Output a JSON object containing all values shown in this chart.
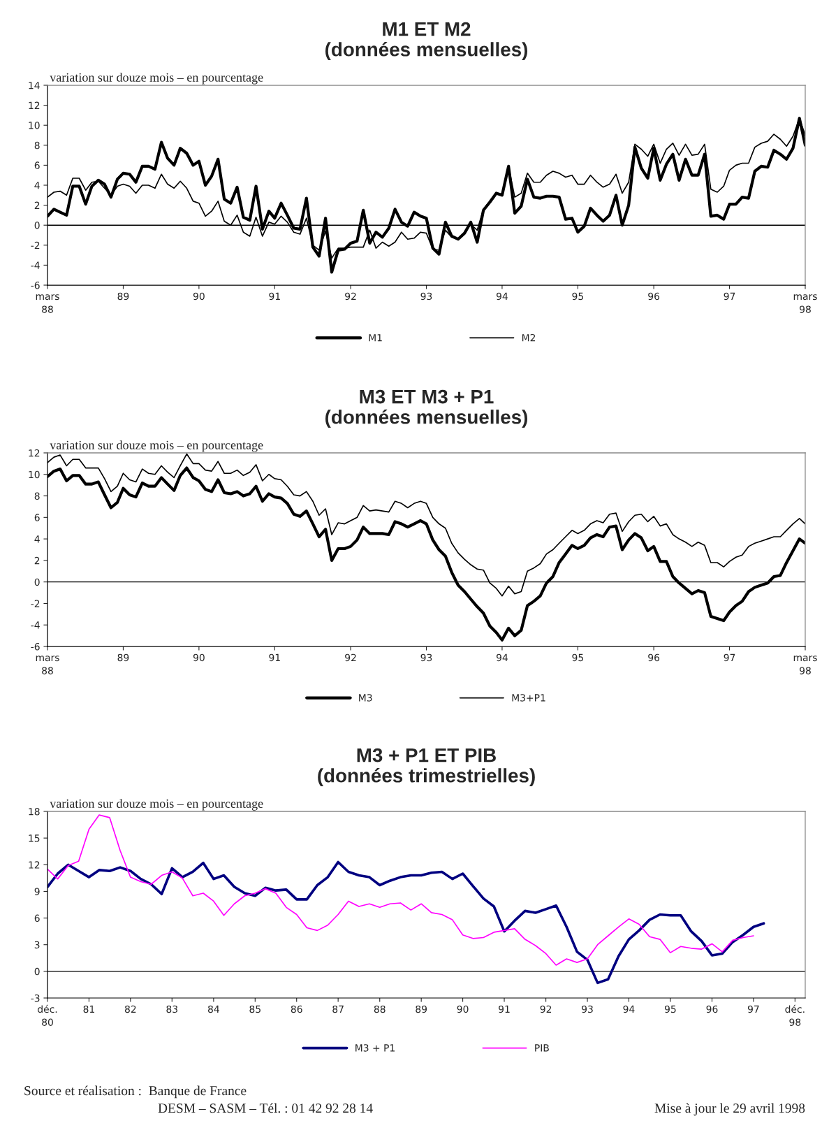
{
  "chart_data": [
    {
      "type": "line",
      "title": "M1 ET M2\n(données mensuelles)",
      "ylabel": "variation sur douze mois – en pourcentage",
      "x": [
        "1988-03",
        "1988-04",
        "1988-05",
        "1988-06",
        "1988-07",
        "1988-08",
        "1988-09",
        "1988-10",
        "1988-11",
        "1988-12",
        "1989-01",
        "1989-02",
        "1989-03",
        "1989-04",
        "1989-05",
        "1989-06",
        "1989-07",
        "1989-08",
        "1989-09",
        "1989-10",
        "1989-11",
        "1989-12",
        "1990-01",
        "1990-02",
        "1990-03",
        "1990-04",
        "1990-05",
        "1990-06",
        "1990-07",
        "1990-08",
        "1990-09",
        "1990-10",
        "1990-11",
        "1990-12",
        "1991-01",
        "1991-02",
        "1991-03",
        "1991-04",
        "1991-05",
        "1991-06",
        "1991-07",
        "1991-08",
        "1991-09",
        "1991-10",
        "1991-11",
        "1991-12",
        "1992-01",
        "1992-02",
        "1992-03",
        "1992-04",
        "1992-05",
        "1992-06",
        "1992-07",
        "1992-08",
        "1992-09",
        "1992-10",
        "1992-11",
        "1992-12",
        "1993-01",
        "1993-02",
        "1993-03",
        "1993-04",
        "1993-05",
        "1993-06",
        "1993-07",
        "1993-08",
        "1993-09",
        "1993-10",
        "1993-11",
        "1993-12",
        "1994-01",
        "1994-02",
        "1994-03",
        "1994-04",
        "1994-05",
        "1994-06",
        "1994-07",
        "1994-08",
        "1994-09",
        "1994-10",
        "1994-11",
        "1994-12",
        "1995-01",
        "1995-02",
        "1995-03",
        "1995-04",
        "1995-05",
        "1995-06",
        "1995-07",
        "1995-08",
        "1995-09",
        "1995-10",
        "1995-11",
        "1995-12",
        "1996-01",
        "1996-02",
        "1996-03",
        "1996-04",
        "1996-05",
        "1996-06",
        "1996-07",
        "1996-08",
        "1996-09",
        "1996-10",
        "1996-11",
        "1996-12",
        "1997-01",
        "1997-02",
        "1997-03",
        "1997-04",
        "1997-05",
        "1997-06",
        "1997-07",
        "1997-08",
        "1997-09",
        "1997-10",
        "1997-11",
        "1997-12",
        "1998-01",
        "1998-02",
        "1998-03"
      ],
      "series": [
        {
          "name": "M1",
          "color": "#000000",
          "values": [
            0.9,
            1.6,
            1.3,
            1.0,
            3.9,
            3.9,
            2.1,
            3.9,
            4.5,
            4.1,
            2.8,
            4.6,
            5.2,
            5.1,
            4.3,
            5.9,
            5.9,
            5.6,
            8.3,
            6.7,
            6.0,
            7.7,
            7.2,
            6.0,
            6.4,
            4.0,
            4.9,
            6.6,
            2.6,
            2.2,
            3.8,
            0.8,
            0.5,
            3.9,
            -0.4,
            1.4,
            0.7,
            2.2,
            1.0,
            -0.3,
            -0.4,
            2.7,
            -2.2,
            -3.1,
            0.7,
            -4.7,
            -2.5,
            -2.4,
            -1.8,
            -1.6,
            1.5,
            -1.8,
            -0.7,
            -1.2,
            -0.3,
            1.6,
            0.3,
            -0.1,
            1.3,
            0.9,
            0.7,
            -2.3,
            -2.9,
            0.3,
            -1.1,
            -1.4,
            -0.8,
            0.3,
            -1.7,
            1.5,
            2.3,
            3.2,
            3.0,
            5.9,
            1.2,
            1.9,
            4.6,
            2.8,
            2.7,
            2.9,
            2.9,
            2.8,
            0.6,
            0.7,
            -0.7,
            -0.1,
            1.7,
            1.0,
            0.4,
            1.0,
            3.0,
            0.0,
            2.0,
            7.8,
            5.7,
            4.7,
            7.7,
            4.5,
            6.1,
            7.1,
            4.5,
            6.6,
            5.0,
            5.0,
            7.1,
            0.9,
            1.0,
            0.6,
            2.1,
            2.1,
            2.8,
            2.7,
            5.4,
            5.9,
            5.8,
            7.5,
            7.1,
            6.6,
            7.7,
            10.7,
            8.0
          ]
        },
        {
          "name": "M2",
          "color": "#000000",
          "values": [
            2.8,
            3.3,
            3.4,
            3.0,
            4.7,
            4.7,
            3.5,
            4.3,
            4.4,
            3.7,
            3.0,
            3.9,
            4.1,
            3.9,
            3.2,
            4.0,
            4.0,
            3.7,
            5.1,
            4.1,
            3.7,
            4.4,
            3.7,
            2.4,
            2.2,
            0.9,
            1.4,
            2.4,
            0.4,
            0.0,
            1.0,
            -0.7,
            -1.1,
            0.8,
            -1.1,
            0.3,
            0.1,
            0.9,
            0.3,
            -0.7,
            -0.9,
            0.7,
            -2.0,
            -2.5,
            -0.6,
            -3.3,
            -2.3,
            -2.3,
            -2.2,
            -2.2,
            -2.2,
            -0.5,
            -2.3,
            -1.7,
            -2.1,
            -1.7,
            -0.7,
            -1.4,
            -1.3,
            -0.7,
            -0.8,
            -2.4,
            -2.5,
            -0.5,
            -1.2,
            -1.4,
            -0.8,
            0.1,
            -0.5,
            1.6,
            2.4,
            3.2,
            3.0,
            5.9,
            2.8,
            3.2,
            5.2,
            4.3,
            4.3,
            5.0,
            5.4,
            5.2,
            4.8,
            5.0,
            4.1,
            4.1,
            5.0,
            4.3,
            3.8,
            4.1,
            5.1,
            3.2,
            4.3,
            8.1,
            7.6,
            6.9,
            8.1,
            6.2,
            7.6,
            8.2,
            7.0,
            8.1,
            7.0,
            7.1,
            8.1,
            3.6,
            3.3,
            3.9,
            5.5,
            6.0,
            6.2,
            6.2,
            7.8,
            8.2,
            8.4,
            9.1,
            8.6,
            7.9,
            8.9,
            10.7,
            9.0
          ]
        }
      ],
      "xlim": [
        "1988-03",
        "1998-03"
      ],
      "xticks": [
        {
          "value": "1988-03",
          "label": "mars\n88"
        },
        {
          "value": "1989-03",
          "label": "89"
        },
        {
          "value": "1990-03",
          "label": "90"
        },
        {
          "value": "1991-03",
          "label": "91"
        },
        {
          "value": "1992-03",
          "label": "92"
        },
        {
          "value": "1993-03",
          "label": "93"
        },
        {
          "value": "1994-03",
          "label": "94"
        },
        {
          "value": "1995-03",
          "label": "95"
        },
        {
          "value": "1996-03",
          "label": "96"
        },
        {
          "value": "1997-03",
          "label": "97"
        },
        {
          "value": "1998-03",
          "label": "mars\n98"
        }
      ],
      "ylim": [
        -6,
        14
      ],
      "yticks": [
        -6,
        -4,
        -2,
        0,
        2,
        4,
        6,
        8,
        10,
        12,
        14
      ],
      "ref_lines": [
        {
          "axis": "y",
          "value": 0,
          "color": "#000000"
        }
      ],
      "legend": "bottom",
      "grid": false
    },
    {
      "type": "line",
      "title": "M3 ET M3 + P1\n(données mensuelles)",
      "ylabel": "variation sur douze mois – en pourcentage",
      "x": [
        "1988-03",
        "1988-04",
        "1988-05",
        "1988-06",
        "1988-07",
        "1988-08",
        "1988-09",
        "1988-10",
        "1988-11",
        "1988-12",
        "1989-01",
        "1989-02",
        "1989-03",
        "1989-04",
        "1989-05",
        "1989-06",
        "1989-07",
        "1989-08",
        "1989-09",
        "1989-10",
        "1989-11",
        "1989-12",
        "1990-01",
        "1990-02",
        "1990-03",
        "1990-04",
        "1990-05",
        "1990-06",
        "1990-07",
        "1990-08",
        "1990-09",
        "1990-10",
        "1990-11",
        "1990-12",
        "1991-01",
        "1991-02",
        "1991-03",
        "1991-04",
        "1991-05",
        "1991-06",
        "1991-07",
        "1991-08",
        "1991-09",
        "1991-10",
        "1991-11",
        "1991-12",
        "1992-01",
        "1992-02",
        "1992-03",
        "1992-04",
        "1992-05",
        "1992-06",
        "1992-07",
        "1992-08",
        "1992-09",
        "1992-10",
        "1992-11",
        "1992-12",
        "1993-01",
        "1993-02",
        "1993-03",
        "1993-04",
        "1993-05",
        "1993-06",
        "1993-07",
        "1993-08",
        "1993-09",
        "1993-10",
        "1993-11",
        "1993-12",
        "1994-01",
        "1994-02",
        "1994-03",
        "1994-04",
        "1994-05",
        "1994-06",
        "1994-07",
        "1994-08",
        "1994-09",
        "1994-10",
        "1994-11",
        "1994-12",
        "1995-01",
        "1995-02",
        "1995-03",
        "1995-04",
        "1995-05",
        "1995-06",
        "1995-07",
        "1995-08",
        "1995-09",
        "1995-10",
        "1995-11",
        "1995-12",
        "1996-01",
        "1996-02",
        "1996-03",
        "1996-04",
        "1996-05",
        "1996-06",
        "1996-07",
        "1996-08",
        "1996-09",
        "1996-10",
        "1996-11",
        "1996-12",
        "1997-01",
        "1997-02",
        "1997-03",
        "1997-04",
        "1997-05",
        "1997-06",
        "1997-07",
        "1997-08",
        "1997-09",
        "1997-10",
        "1997-11",
        "1997-12",
        "1998-01",
        "1998-02",
        "1998-03"
      ],
      "series": [
        {
          "name": "M3",
          "color": "#000000",
          "values": [
            9.8,
            10.3,
            10.5,
            9.4,
            9.9,
            9.9,
            9.1,
            9.1,
            9.3,
            8.1,
            6.9,
            7.4,
            8.7,
            8.1,
            7.9,
            9.2,
            8.9,
            8.9,
            9.7,
            9.1,
            8.5,
            9.9,
            10.6,
            9.7,
            9.4,
            8.6,
            8.4,
            9.5,
            8.3,
            8.2,
            8.4,
            8.0,
            8.2,
            8.9,
            7.5,
            8.2,
            7.9,
            7.8,
            7.3,
            6.3,
            6.1,
            6.6,
            5.4,
            4.2,
            4.9,
            2.0,
            3.1,
            3.1,
            3.3,
            3.9,
            5.1,
            4.5,
            4.5,
            4.5,
            4.4,
            5.6,
            5.4,
            5.1,
            5.4,
            5.7,
            5.4,
            3.9,
            3.0,
            2.4,
            0.9,
            -0.3,
            -0.9,
            -1.6,
            -2.3,
            -2.9,
            -4.1,
            -4.7,
            -5.4,
            -4.3,
            -5.0,
            -4.5,
            -2.2,
            -1.8,
            -1.3,
            -0.1,
            0.5,
            1.8,
            2.6,
            3.4,
            3.1,
            3.4,
            4.1,
            4.4,
            4.2,
            5.1,
            5.2,
            3.0,
            3.9,
            4.5,
            4.1,
            2.9,
            3.3,
            1.9,
            1.9,
            0.5,
            -0.1,
            -0.6,
            -1.1,
            -0.8,
            -1.0,
            -3.2,
            -3.4,
            -3.6,
            -2.8,
            -2.2,
            -1.8,
            -0.9,
            -0.5,
            -0.3,
            -0.1,
            0.5,
            0.6,
            1.8,
            2.9,
            4.0,
            3.6
          ]
        },
        {
          "name": "M3+P1",
          "color": "#000000",
          "values": [
            11.1,
            11.6,
            11.8,
            10.8,
            11.4,
            11.4,
            10.6,
            10.6,
            10.6,
            9.6,
            8.4,
            8.9,
            10.1,
            9.5,
            9.3,
            10.5,
            10.1,
            10.0,
            10.8,
            10.2,
            9.7,
            10.8,
            11.9,
            11.0,
            11.0,
            10.4,
            10.3,
            11.2,
            10.1,
            10.1,
            10.4,
            9.9,
            10.2,
            10.9,
            9.4,
            10.0,
            9.6,
            9.5,
            8.9,
            8.1,
            8.0,
            8.4,
            7.5,
            6.2,
            6.8,
            4.4,
            5.5,
            5.4,
            5.7,
            6.0,
            7.1,
            6.6,
            6.7,
            6.6,
            6.5,
            7.5,
            7.3,
            6.9,
            7.3,
            7.5,
            7.3,
            6.0,
            5.4,
            5.0,
            3.6,
            2.7,
            2.1,
            1.6,
            1.2,
            1.1,
            -0.1,
            -0.6,
            -1.3,
            -0.4,
            -1.1,
            -0.9,
            1.0,
            1.3,
            1.7,
            2.6,
            3.0,
            3.6,
            4.2,
            4.8,
            4.5,
            4.8,
            5.4,
            5.7,
            5.5,
            6.3,
            6.4,
            4.7,
            5.6,
            6.2,
            6.3,
            5.6,
            6.1,
            5.2,
            5.4,
            4.4,
            4.0,
            3.7,
            3.3,
            3.7,
            3.4,
            1.8,
            1.8,
            1.4,
            1.9,
            2.3,
            2.5,
            3.3,
            3.6,
            3.8,
            4.0,
            4.2,
            4.2,
            4.8,
            5.4,
            5.9,
            5.4
          ]
        }
      ],
      "xlim": [
        "1988-03",
        "1998-03"
      ],
      "xticks": [
        {
          "value": "1988-03",
          "label": "mars\n88"
        },
        {
          "value": "1989-03",
          "label": "89"
        },
        {
          "value": "1990-03",
          "label": "90"
        },
        {
          "value": "1991-03",
          "label": "91"
        },
        {
          "value": "1992-03",
          "label": "92"
        },
        {
          "value": "1993-03",
          "label": "93"
        },
        {
          "value": "1994-03",
          "label": "94"
        },
        {
          "value": "1995-03",
          "label": "95"
        },
        {
          "value": "1996-03",
          "label": "96"
        },
        {
          "value": "1997-03",
          "label": "97"
        },
        {
          "value": "1998-03",
          "label": "mars\n98"
        }
      ],
      "ylim": [
        -6,
        12
      ],
      "yticks": [
        -6,
        -4,
        -2,
        0,
        2,
        4,
        6,
        8,
        10,
        12
      ],
      "ref_lines": [
        {
          "axis": "y",
          "value": 0,
          "color": "#000000"
        }
      ],
      "legend": "bottom",
      "grid": false
    },
    {
      "type": "line",
      "title": "M3 + P1 ET PIB\n(données trimestrielles)",
      "ylabel": "variation sur douze mois – en pourcentage",
      "x": [
        "1980-12",
        "1981-03",
        "1981-06",
        "1981-09",
        "1981-12",
        "1982-03",
        "1982-06",
        "1982-09",
        "1982-12",
        "1983-03",
        "1983-06",
        "1983-09",
        "1983-12",
        "1984-03",
        "1984-06",
        "1984-09",
        "1984-12",
        "1985-03",
        "1985-06",
        "1985-09",
        "1985-12",
        "1986-03",
        "1986-06",
        "1986-09",
        "1986-12",
        "1987-03",
        "1987-06",
        "1987-09",
        "1987-12",
        "1988-03",
        "1988-06",
        "1988-09",
        "1988-12",
        "1989-03",
        "1989-06",
        "1989-09",
        "1989-12",
        "1990-03",
        "1990-06",
        "1990-09",
        "1990-12",
        "1991-03",
        "1991-06",
        "1991-09",
        "1991-12",
        "1992-03",
        "1992-06",
        "1992-09",
        "1992-12",
        "1993-03",
        "1993-06",
        "1993-09",
        "1993-12",
        "1994-03",
        "1994-06",
        "1994-09",
        "1994-12",
        "1995-03",
        "1995-06",
        "1995-09",
        "1995-12",
        "1996-03",
        "1996-06",
        "1996-09",
        "1996-12",
        "1997-03",
        "1997-06",
        "1997-09",
        "1997-12",
        "1998-03"
      ],
      "series": [
        {
          "name": "M3 + P1",
          "color": "#000080",
          "values": [
            9.5,
            11.0,
            12.0,
            11.3,
            10.6,
            11.4,
            11.3,
            11.7,
            11.3,
            10.4,
            9.8,
            8.7,
            11.6,
            10.6,
            11.2,
            12.2,
            10.4,
            10.8,
            9.5,
            8.8,
            8.5,
            9.4,
            9.1,
            9.2,
            8.1,
            8.1,
            9.7,
            10.6,
            12.3,
            11.2,
            10.8,
            10.6,
            9.7,
            10.2,
            10.6,
            10.8,
            10.8,
            11.1,
            11.2,
            10.4,
            11.0,
            9.6,
            8.2,
            7.3,
            4.5,
            5.7,
            6.8,
            6.6,
            7.0,
            7.4,
            5.0,
            2.2,
            1.3,
            -1.3,
            -0.9,
            1.7,
            3.6,
            4.6,
            5.8,
            6.4,
            6.3,
            6.3,
            4.5,
            3.4,
            1.8,
            2.0,
            3.3,
            4.1,
            5.0,
            5.4
          ]
        },
        {
          "name": "PIB",
          "color": "#ff00ff",
          "values": [
            11.5,
            10.4,
            11.9,
            12.4,
            16.0,
            17.6,
            17.3,
            13.6,
            10.6,
            10.1,
            9.8,
            10.8,
            11.2,
            10.5,
            8.5,
            8.8,
            7.9,
            6.3,
            7.6,
            8.5,
            8.8,
            9.3,
            8.8,
            7.2,
            6.4,
            4.9,
            4.6,
            5.2,
            6.4,
            7.9,
            7.3,
            7.6,
            7.2,
            7.6,
            7.7,
            6.9,
            7.6,
            6.6,
            6.4,
            5.8,
            4.1,
            3.7,
            3.8,
            4.4,
            4.6,
            4.8,
            3.6,
            2.9,
            2.0,
            0.7,
            1.4,
            1.0,
            1.4,
            3.0,
            4.0,
            5.0,
            5.9,
            5.3,
            3.9,
            3.6,
            2.1,
            2.8,
            2.6,
            2.5,
            3.1,
            2.2,
            3.5,
            3.8,
            4.0,
            null
          ]
        }
      ],
      "xlim": [
        "1980-12",
        "1999-03"
      ],
      "xticks": [
        {
          "value": "1980-12",
          "label": "déc.\n80"
        },
        {
          "value": "1981-12",
          "label": "81"
        },
        {
          "value": "1982-12",
          "label": "82"
        },
        {
          "value": "1983-12",
          "label": "83"
        },
        {
          "value": "1984-12",
          "label": "84"
        },
        {
          "value": "1985-12",
          "label": "85"
        },
        {
          "value": "1986-12",
          "label": "86"
        },
        {
          "value": "1987-12",
          "label": "87"
        },
        {
          "value": "1988-12",
          "label": "88"
        },
        {
          "value": "1989-12",
          "label": "89"
        },
        {
          "value": "1990-12",
          "label": "90"
        },
        {
          "value": "1991-12",
          "label": "91"
        },
        {
          "value": "1992-12",
          "label": "92"
        },
        {
          "value": "1993-12",
          "label": "93"
        },
        {
          "value": "1994-12",
          "label": "94"
        },
        {
          "value": "1995-12",
          "label": "95"
        },
        {
          "value": "1996-12",
          "label": "96"
        },
        {
          "value": "1997-12",
          "label": "97"
        },
        {
          "value": "1998-12",
          "label": "déc.\n98"
        }
      ],
      "ylim": [
        -3,
        18
      ],
      "yticks": [
        -3,
        0,
        3,
        6,
        9,
        12,
        15,
        18
      ],
      "ref_lines": [
        {
          "axis": "y",
          "value": 0,
          "color": "#000000"
        }
      ],
      "legend": "bottom",
      "grid": false,
      "annotations": [
        "Source et réalisation :  Banque de France",
        "DESM – SASM – Tél. : 01 42 92 28 14",
        "Mise à jour le 29 avril 1998"
      ]
    }
  ]
}
